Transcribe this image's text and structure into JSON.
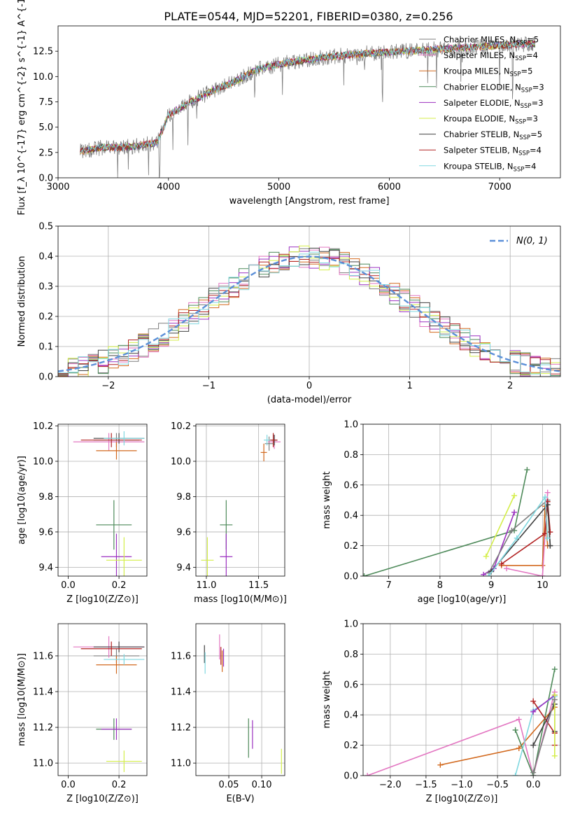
{
  "figure_title": "PLATE=0544, MJD=52201, FIBERID=0380, z=0.256",
  "colors": {
    "chabrier_miles": "#7f7f7f",
    "salpeter_miles": "#e377c2",
    "kroupa_miles": "#d2691e",
    "chabrier_elodie": "#4e8a5a",
    "salpeter_elodie": "#9b30c0",
    "kroupa_elodie": "#d4ee4a",
    "chabrier_stelib": "#404040",
    "salpeter_stelib": "#b22222",
    "kroupa_stelib": "#80d8e0",
    "gaussian": "#5b8fd8"
  },
  "chart_data": [
    {
      "id": "spectrum",
      "type": "line",
      "title": "PLATE=0544, MJD=52201, FIBERID=0380, z=0.256",
      "xlabel": "wavelength [Angstrom, rest frame]",
      "ylabel": "Flux [f_λ 10^{-17} erg cm^{-2} s^{-1} A^{-1}]",
      "xlim": [
        3000,
        7550
      ],
      "ylim": [
        0,
        15
      ],
      "xticks": [
        3000,
        4000,
        5000,
        6000,
        7000
      ],
      "yticks": [
        0.0,
        2.5,
        5.0,
        7.5,
        10.0,
        12.5
      ],
      "ytick_labels": [
        "0.0",
        "2.5",
        "5.0",
        "7.5",
        "10.0",
        "12.5"
      ],
      "grid": false,
      "legend_position": "top-right",
      "observed_range": [
        3200,
        7320
      ],
      "continuum_points": {
        "x": [
          3200,
          3400,
          3550,
          3700,
          3900,
          4000,
          4200,
          4400,
          4600,
          4800,
          5000,
          5200,
          5500,
          5800,
          6000,
          6300,
          6600,
          6900,
          7200,
          7320
        ],
        "y": [
          2.6,
          3.0,
          3.0,
          3.1,
          3.5,
          6.2,
          7.5,
          8.6,
          9.5,
          10.7,
          11.2,
          11.6,
          12.0,
          12.3,
          12.4,
          12.6,
          12.8,
          13.0,
          13.2,
          13.2
        ]
      },
      "series": [
        {
          "name": "Chabrier MILES, N_SSP=5",
          "label_main": "Chabrier MILES, N",
          "label_sub": "SSP",
          "label_tail": "=5",
          "color_key": "chabrier_miles"
        },
        {
          "name": "Salpeter MILES, N_SSP=4",
          "label_main": "Salpeter MILES, N",
          "label_sub": "SSP",
          "label_tail": "=4",
          "color_key": "salpeter_miles"
        },
        {
          "name": "Kroupa MILES, N_SSP=5",
          "label_main": "Kroupa MILES, N",
          "label_sub": "SSP",
          "label_tail": "=5",
          "color_key": "kroupa_miles"
        },
        {
          "name": "Chabrier ELODIE, N_SSP=3",
          "label_main": "Chabrier ELODIE, N",
          "label_sub": "SSP",
          "label_tail": "=3",
          "color_key": "chabrier_elodie"
        },
        {
          "name": "Salpeter ELODIE, N_SSP=3",
          "label_main": "Salpeter ELODIE, N",
          "label_sub": "SSP",
          "label_tail": "=3",
          "color_key": "salpeter_elodie"
        },
        {
          "name": "Kroupa ELODIE, N_SSP=3",
          "label_main": "Kroupa ELODIE, N",
          "label_sub": "SSP",
          "label_tail": "=3",
          "color_key": "kroupa_elodie"
        },
        {
          "name": "Chabrier STELIB, N_SSP=5",
          "label_main": "Chabrier STELIB, N",
          "label_sub": "SSP",
          "label_tail": "=5",
          "color_key": "chabrier_stelib"
        },
        {
          "name": "Salpeter STELIB, N_SSP=4",
          "label_main": "Salpeter STELIB, N",
          "label_sub": "SSP",
          "label_tail": "=4",
          "color_key": "salpeter_stelib"
        },
        {
          "name": "Kroupa STELIB, N_SSP=4",
          "label_main": "Kroupa STELIB, N",
          "label_sub": "SSP",
          "label_tail": "=4",
          "color_key": "kroupa_stelib"
        }
      ]
    },
    {
      "id": "residuals",
      "type": "line",
      "xlabel": "(data-model)/error",
      "ylabel": "Normed distribution",
      "xlim": [
        -2.5,
        2.5
      ],
      "ylim": [
        0,
        0.5
      ],
      "xticks": [
        -2,
        -1,
        0,
        1,
        2
      ],
      "xtick_labels": [
        "−2",
        "−1",
        "0",
        "1",
        "2"
      ],
      "yticks": [
        0.0,
        0.1,
        0.2,
        0.3,
        0.4,
        0.5
      ],
      "ytick_labels": [
        "0.0",
        "0.1",
        "0.2",
        "0.3",
        "0.4",
        "0.5"
      ],
      "grid": true,
      "legend_position": "top-right",
      "legend_label": "N(0, 1)",
      "bin_width": 0.1,
      "histogram_profile": "standard normal density sampled in bins of width 0.1 over [-2.5, 2.5], with bin-to-bin scatter of about ±0.04 per model"
    },
    {
      "id": "age_vs_Z",
      "type": "scatter",
      "xlabel": "Z [log10(Z/Z⊙)]",
      "ylabel": "age [log10(age/yr)]",
      "xlim": [
        -0.04,
        0.31
      ],
      "ylim": [
        9.35,
        10.21
      ],
      "xticks": [
        0.0,
        0.2
      ],
      "xtick_labels": [
        "0.0",
        "0.2"
      ],
      "yticks": [
        9.4,
        9.6,
        9.8,
        10.0,
        10.2
      ],
      "ytick_labels": [
        "9.4",
        "9.6",
        "9.8",
        "10.0",
        "10.2"
      ],
      "grid": true,
      "points": [
        {
          "x": 0.19,
          "y": 10.12,
          "xerr": 0.09,
          "yerr": 0.04,
          "color_key": "chabrier_miles"
        },
        {
          "x": 0.16,
          "y": 10.11,
          "xerr": 0.14,
          "yerr": 0.05,
          "color_key": "salpeter_miles"
        },
        {
          "x": 0.19,
          "y": 10.06,
          "xerr": 0.08,
          "yerr": 0.05,
          "color_key": "kroupa_miles"
        },
        {
          "x": 0.18,
          "y": 9.64,
          "xerr": 0.07,
          "yerr": 0.14,
          "color_key": "chabrier_elodie"
        },
        {
          "x": 0.19,
          "y": 9.46,
          "xerr": 0.06,
          "yerr": 0.13,
          "color_key": "salpeter_elodie"
        },
        {
          "x": 0.22,
          "y": 9.44,
          "xerr": 0.07,
          "yerr": 0.13,
          "color_key": "kroupa_elodie"
        },
        {
          "x": 0.2,
          "y": 10.13,
          "xerr": 0.1,
          "yerr": 0.03,
          "color_key": "chabrier_stelib"
        },
        {
          "x": 0.17,
          "y": 10.12,
          "xerr": 0.12,
          "yerr": 0.04,
          "color_key": "salpeter_stelib"
        },
        {
          "x": 0.22,
          "y": 10.13,
          "xerr": 0.08,
          "yerr": 0.04,
          "color_key": "kroupa_stelib"
        }
      ]
    },
    {
      "id": "age_vs_mass",
      "type": "scatter",
      "xlabel": "mass [log10(M/M⊙)]",
      "xlim": [
        10.9,
        11.75
      ],
      "ylim": [
        9.35,
        10.21
      ],
      "xticks": [
        11.0,
        11.5
      ],
      "xtick_labels": [
        "11.0",
        "11.5"
      ],
      "yticks": [
        9.4,
        9.6,
        9.8,
        10.0,
        10.2
      ],
      "ytick_labels": [
        "9.4",
        "9.6",
        "9.8",
        "10.0",
        "10.2"
      ],
      "grid": true,
      "points": [
        {
          "x": 11.6,
          "y": 10.1,
          "xerr": 0.04,
          "yerr": 0.04,
          "color_key": "chabrier_miles"
        },
        {
          "x": 11.65,
          "y": 10.11,
          "xerr": 0.06,
          "yerr": 0.04,
          "color_key": "salpeter_miles"
        },
        {
          "x": 11.55,
          "y": 10.05,
          "xerr": 0.03,
          "yerr": 0.05,
          "color_key": "kroupa_miles"
        },
        {
          "x": 11.19,
          "y": 9.64,
          "xerr": 0.06,
          "yerr": 0.14,
          "color_key": "chabrier_elodie"
        },
        {
          "x": 11.19,
          "y": 9.46,
          "xerr": 0.06,
          "yerr": 0.13,
          "color_key": "salpeter_elodie"
        },
        {
          "x": 11.01,
          "y": 9.44,
          "xerr": 0.06,
          "yerr": 0.13,
          "color_key": "kroupa_elodie"
        },
        {
          "x": 11.65,
          "y": 10.12,
          "xerr": 0.03,
          "yerr": 0.03,
          "color_key": "chabrier_stelib"
        },
        {
          "x": 11.64,
          "y": 10.12,
          "xerr": 0.04,
          "yerr": 0.04,
          "color_key": "salpeter_stelib"
        },
        {
          "x": 11.58,
          "y": 10.12,
          "xerr": 0.03,
          "yerr": 0.03,
          "color_key": "kroupa_stelib"
        }
      ]
    },
    {
      "id": "weight_vs_age",
      "type": "line",
      "xlabel": "age [log10(age/yr)]",
      "ylabel": "mass weight",
      "xlim": [
        6.5,
        10.35
      ],
      "ylim": [
        0,
        1.0
      ],
      "xticks": [
        7,
        8,
        9,
        10
      ],
      "xtick_labels": [
        "7",
        "8",
        "9",
        "10"
      ],
      "yticks": [
        0.0,
        0.2,
        0.4,
        0.6,
        0.8,
        1.0
      ],
      "ytick_labels": [
        "0.0",
        "0.2",
        "0.4",
        "0.6",
        "0.8",
        "1.0"
      ],
      "grid": true,
      "series": [
        {
          "color_key": "chabrier_elodie",
          "x": [
            6.52,
            9.45,
            9.7
          ],
          "y": [
            0.0,
            0.3,
            0.7
          ]
        },
        {
          "color_key": "kroupa_elodie",
          "x": [
            8.9,
            9.45
          ],
          "y": [
            0.13,
            0.53
          ]
        },
        {
          "color_key": "salpeter_elodie",
          "x": [
            8.85,
            9.05,
            9.45
          ],
          "y": [
            0.01,
            0.05,
            0.42
          ]
        },
        {
          "color_key": "kroupa_miles",
          "x": [
            9.2,
            10.0,
            10.05,
            10.1
          ],
          "y": [
            0.07,
            0.07,
            0.46,
            0.2
          ]
        },
        {
          "color_key": "chabrier_miles",
          "x": [
            8.95,
            9.4,
            10.1,
            10.15
          ],
          "y": [
            0.02,
            0.3,
            0.5,
            0.2
          ]
        },
        {
          "color_key": "salpeter_miles",
          "x": [
            9.3,
            10.0,
            10.1
          ],
          "y": [
            0.05,
            0.0,
            0.55
          ]
        },
        {
          "color_key": "salpeter_stelib",
          "x": [
            9.2,
            10.05,
            10.1,
            10.15
          ],
          "y": [
            0.08,
            0.28,
            0.49,
            0.29
          ]
        },
        {
          "color_key": "chabrier_stelib",
          "x": [
            9.0,
            10.1,
            10.15
          ],
          "y": [
            0.03,
            0.47,
            0.2
          ]
        },
        {
          "color_key": "kroupa_stelib",
          "x": [
            8.95,
            9.5,
            10.05,
            10.1
          ],
          "y": [
            0.0,
            0.25,
            0.52,
            0.25
          ]
        }
      ]
    },
    {
      "id": "mass_vs_Z",
      "type": "scatter",
      "xlabel": "Z [log10(Z/Z⊙)]",
      "ylabel": "mass [log10(M/M⊙)]",
      "xlim": [
        -0.04,
        0.31
      ],
      "ylim": [
        10.93,
        11.78
      ],
      "xticks": [
        0.0,
        0.2
      ],
      "xtick_labels": [
        "0.0",
        "0.2"
      ],
      "yticks": [
        11.0,
        11.2,
        11.4,
        11.6
      ],
      "ytick_labels": [
        "11.0",
        "11.2",
        "11.4",
        "11.6"
      ],
      "grid": true,
      "points": [
        {
          "x": 0.19,
          "y": 11.6,
          "xerr": 0.09,
          "yerr": 0.04,
          "color_key": "chabrier_miles"
        },
        {
          "x": 0.16,
          "y": 11.65,
          "xerr": 0.14,
          "yerr": 0.06,
          "color_key": "salpeter_miles"
        },
        {
          "x": 0.19,
          "y": 11.55,
          "xerr": 0.08,
          "yerr": 0.05,
          "color_key": "kroupa_miles"
        },
        {
          "x": 0.18,
          "y": 11.19,
          "xerr": 0.07,
          "yerr": 0.06,
          "color_key": "chabrier_elodie"
        },
        {
          "x": 0.19,
          "y": 11.19,
          "xerr": 0.06,
          "yerr": 0.06,
          "color_key": "salpeter_elodie"
        },
        {
          "x": 0.22,
          "y": 11.01,
          "xerr": 0.07,
          "yerr": 0.06,
          "color_key": "kroupa_elodie"
        },
        {
          "x": 0.2,
          "y": 11.65,
          "xerr": 0.1,
          "yerr": 0.03,
          "color_key": "chabrier_stelib"
        },
        {
          "x": 0.17,
          "y": 11.64,
          "xerr": 0.12,
          "yerr": 0.04,
          "color_key": "salpeter_stelib"
        },
        {
          "x": 0.22,
          "y": 11.58,
          "xerr": 0.08,
          "yerr": 0.03,
          "color_key": "kroupa_stelib"
        }
      ]
    },
    {
      "id": "mass_vs_ebv",
      "type": "scatter",
      "xlabel": "E(B-V)",
      "xlim": [
        0.0,
        0.135
      ],
      "ylim": [
        10.93,
        11.78
      ],
      "xticks": [
        0.05,
        0.1
      ],
      "xtick_labels": [
        "0.05",
        "0.10"
      ],
      "yticks": [
        11.0,
        11.2,
        11.4,
        11.6
      ],
      "ytick_labels": [
        "11.0",
        "11.2",
        "11.4",
        "11.6"
      ],
      "grid": true,
      "points": [
        {
          "x": 0.013,
          "y": 11.61,
          "yerr": 0.05,
          "color_key": "chabrier_stelib"
        },
        {
          "x": 0.014,
          "y": 11.56,
          "yerr": 0.06,
          "color_key": "kroupa_stelib"
        },
        {
          "x": 0.036,
          "y": 11.65,
          "yerr": 0.07,
          "color_key": "salpeter_miles"
        },
        {
          "x": 0.038,
          "y": 11.6,
          "yerr": 0.05,
          "color_key": "salpeter_stelib"
        },
        {
          "x": 0.04,
          "y": 11.57,
          "yerr": 0.06,
          "color_key": "kroupa_miles"
        },
        {
          "x": 0.042,
          "y": 11.59,
          "yerr": 0.05,
          "color_key": "salpeter_elodie"
        },
        {
          "x": 0.08,
          "y": 11.14,
          "yerr": 0.11,
          "color_key": "chabrier_elodie"
        },
        {
          "x": 0.086,
          "y": 11.16,
          "yerr": 0.08,
          "color_key": "salpeter_elodie"
        },
        {
          "x": 0.13,
          "y": 11.01,
          "yerr": 0.07,
          "color_key": "kroupa_elodie"
        }
      ]
    },
    {
      "id": "weight_vs_Z",
      "type": "line",
      "xlabel": "Z [log10(Z/Z⊙)]",
      "ylabel": "mass weight",
      "xlim": [
        -2.38,
        0.38
      ],
      "ylim": [
        0,
        1.0
      ],
      "xticks": [
        -2.0,
        -1.5,
        -1.0,
        -0.5,
        0.0
      ],
      "xtick_labels": [
        "−2.0",
        "−1.5",
        "−1.0",
        "−0.5",
        "0.0"
      ],
      "yticks": [
        0.0,
        0.2,
        0.4,
        0.6,
        0.8,
        1.0
      ],
      "ytick_labels": [
        "0.0",
        "0.2",
        "0.4",
        "0.6",
        "0.8",
        "1.0"
      ],
      "grid": true,
      "series": [
        {
          "color_key": "salpeter_miles",
          "x": [
            -2.32,
            -0.2,
            0.0,
            0.3
          ],
          "y": [
            0.0,
            0.37,
            0.0,
            0.55
          ]
        },
        {
          "color_key": "kroupa_miles",
          "x": [
            -1.3,
            -0.2,
            0.3
          ],
          "y": [
            0.07,
            0.18,
            0.45
          ]
        },
        {
          "color_key": "chabrier_elodie",
          "x": [
            -0.25,
            0.0,
            0.3
          ],
          "y": [
            0.3,
            0.0,
            0.7
          ]
        },
        {
          "color_key": "kroupa_stelib",
          "x": [
            -0.25,
            0.0,
            0.3
          ],
          "y": [
            0.0,
            0.43,
            0.52
          ]
        },
        {
          "color_key": "salpeter_elodie",
          "x": [
            0.0,
            0.3
          ],
          "y": [
            0.42,
            0.53
          ]
        },
        {
          "color_key": "salpeter_stelib",
          "x": [
            0.0,
            0.3,
            0.3
          ],
          "y": [
            0.49,
            0.28,
            0.2
          ]
        },
        {
          "color_key": "chabrier_stelib",
          "x": [
            0.0,
            0.3,
            0.3
          ],
          "y": [
            0.2,
            0.47,
            0.29
          ]
        },
        {
          "color_key": "kroupa_elodie",
          "x": [
            0.3,
            0.3
          ],
          "y": [
            0.13,
            0.53
          ]
        },
        {
          "color_key": "chabrier_miles",
          "x": [
            0.0,
            0.3
          ],
          "y": [
            0.02,
            0.5
          ]
        }
      ]
    }
  ]
}
